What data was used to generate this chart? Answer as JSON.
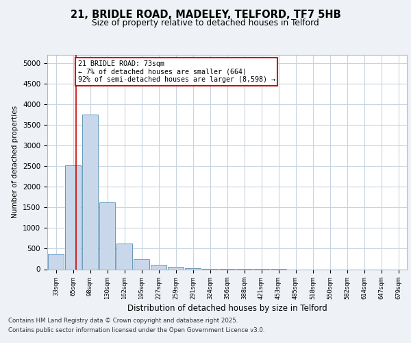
{
  "title1": "21, BRIDLE ROAD, MADELEY, TELFORD, TF7 5HB",
  "title2": "Size of property relative to detached houses in Telford",
  "xlabel": "Distribution of detached houses by size in Telford",
  "ylabel": "Number of detached properties",
  "categories": [
    "33sqm",
    "65sqm",
    "98sqm",
    "130sqm",
    "162sqm",
    "195sqm",
    "227sqm",
    "259sqm",
    "291sqm",
    "324sqm",
    "356sqm",
    "388sqm",
    "421sqm",
    "453sqm",
    "485sqm",
    "518sqm",
    "550sqm",
    "582sqm",
    "614sqm",
    "647sqm",
    "679sqm"
  ],
  "values": [
    370,
    2520,
    3750,
    1620,
    620,
    240,
    105,
    50,
    30,
    10,
    5,
    2,
    1,
    1,
    0,
    0,
    0,
    0,
    0,
    0,
    0
  ],
  "bar_color": "#c8d8ea",
  "bar_edge_color": "#6699bb",
  "red_line_x": 1.17,
  "annotation_line1": "21 BRIDLE ROAD: 73sqm",
  "annotation_line2": "← 7% of detached houses are smaller (664)",
  "annotation_line3": "92% of semi-detached houses are larger (8,598) →",
  "annotation_box_color": "#ffffff",
  "annotation_box_edge": "#cc0000",
  "red_line_color": "#cc0000",
  "footer1": "Contains HM Land Registry data © Crown copyright and database right 2025.",
  "footer2": "Contains public sector information licensed under the Open Government Licence v3.0.",
  "bg_color": "#eef2f6",
  "plot_bg_color": "#ffffff",
  "grid_color": "#c8d4e0",
  "ylim": [
    0,
    5200
  ],
  "yticks": [
    0,
    500,
    1000,
    1500,
    2000,
    2500,
    3000,
    3500,
    4000,
    4500,
    5000
  ]
}
